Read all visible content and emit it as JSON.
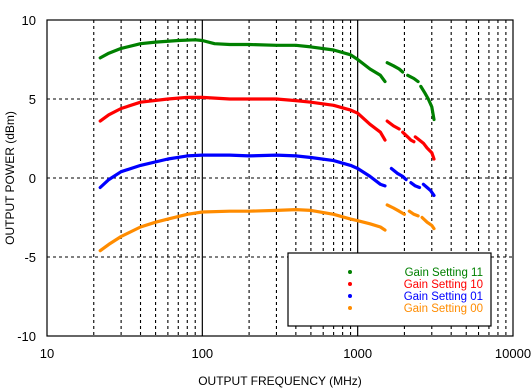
{
  "chart_data": {
    "type": "line",
    "title": "",
    "xlabel": "OUTPUT FREQUENCY (MHz)",
    "ylabel": "OUTPUT POWER (dBm)",
    "xscale": "log",
    "xlim": [
      10,
      10000
    ],
    "ylim": [
      -10,
      10
    ],
    "x_ticks": [
      10,
      100,
      1000,
      10000
    ],
    "x_tick_labels": [
      "10",
      "100",
      "1000",
      "10000"
    ],
    "y_ticks": [
      -10,
      -5,
      0,
      5,
      10
    ],
    "y_tick_labels": [
      "-10",
      "-5",
      "0",
      "5",
      "10"
    ],
    "grid": true,
    "legend_position": "bottom-right",
    "series": [
      {
        "name": "Gain Setting 11",
        "color": "#008000",
        "segments": [
          [
            [
              22,
              7.6
            ],
            [
              25,
              7.9
            ],
            [
              30,
              8.2
            ],
            [
              40,
              8.5
            ],
            [
              50,
              8.6
            ],
            [
              70,
              8.7
            ],
            [
              90,
              8.75
            ],
            [
              100,
              8.7
            ],
            [
              120,
              8.5
            ],
            [
              150,
              8.45
            ],
            [
              200,
              8.45
            ],
            [
              300,
              8.4
            ],
            [
              400,
              8.4
            ],
            [
              500,
              8.3
            ],
            [
              700,
              8.1
            ],
            [
              900,
              7.8
            ],
            [
              1000,
              7.5
            ],
            [
              1200,
              6.9
            ],
            [
              1400,
              6.5
            ],
            [
              1500,
              6.1
            ]
          ],
          [
            [
              1550,
              7.3
            ],
            [
              1700,
              7.1
            ],
            [
              1850,
              6.9
            ],
            [
              1950,
              6.7
            ]
          ],
          [
            [
              2100,
              6.5
            ],
            [
              2300,
              6.3
            ],
            [
              2450,
              6.1
            ]
          ],
          [
            [
              2550,
              5.8
            ],
            [
              2700,
              5.4
            ],
            [
              2850,
              5.0
            ],
            [
              3000,
              4.5
            ],
            [
              3100,
              3.7
            ]
          ]
        ]
      },
      {
        "name": "Gain Setting 10",
        "color": "#ff0000",
        "segments": [
          [
            [
              22,
              3.6
            ],
            [
              25,
              4.0
            ],
            [
              30,
              4.4
            ],
            [
              40,
              4.8
            ],
            [
              60,
              5.0
            ],
            [
              80,
              5.1
            ],
            [
              100,
              5.1
            ],
            [
              150,
              5.0
            ],
            [
              200,
              5.0
            ],
            [
              300,
              5.0
            ],
            [
              400,
              4.9
            ],
            [
              500,
              4.8
            ],
            [
              700,
              4.6
            ],
            [
              900,
              4.3
            ],
            [
              1000,
              4.1
            ],
            [
              1200,
              3.4
            ],
            [
              1400,
              2.9
            ],
            [
              1500,
              2.4
            ]
          ],
          [
            [
              1550,
              3.6
            ],
            [
              1700,
              3.3
            ],
            [
              1850,
              3.1
            ]
          ],
          [
            [
              1950,
              2.9
            ],
            [
              2100,
              2.6
            ],
            [
              2200,
              2.4
            ],
            [
              2300,
              2.3
            ]
          ],
          [
            [
              2350,
              2.6
            ],
            [
              2500,
              2.4
            ],
            [
              2650,
              2.2
            ],
            [
              2800,
              1.9
            ],
            [
              3000,
              1.6
            ],
            [
              3100,
              1.2
            ]
          ]
        ]
      },
      {
        "name": "Gain Setting 01",
        "color": "#0000ff",
        "segments": [
          [
            [
              22,
              -0.6
            ],
            [
              25,
              -0.1
            ],
            [
              30,
              0.4
            ],
            [
              40,
              0.8
            ],
            [
              60,
              1.2
            ],
            [
              80,
              1.4
            ],
            [
              100,
              1.45
            ],
            [
              150,
              1.45
            ],
            [
              200,
              1.4
            ],
            [
              300,
              1.45
            ],
            [
              400,
              1.4
            ],
            [
              500,
              1.3
            ],
            [
              700,
              1.1
            ],
            [
              900,
              0.8
            ],
            [
              1000,
              0.6
            ],
            [
              1200,
              0.1
            ],
            [
              1400,
              -0.4
            ],
            [
              1500,
              -0.5
            ]
          ],
          [
            [
              1650,
              0.6
            ],
            [
              1800,
              0.3
            ],
            [
              1950,
              0.1
            ],
            [
              2050,
              -0.1
            ]
          ],
          [
            [
              2200,
              -0.3
            ],
            [
              2350,
              -0.5
            ],
            [
              2500,
              -0.6
            ]
          ],
          [
            [
              2650,
              -0.4
            ],
            [
              2800,
              -0.6
            ],
            [
              2950,
              -0.8
            ],
            [
              3100,
              -1.1
            ]
          ]
        ]
      },
      {
        "name": "Gain Setting 00",
        "color": "#ff8c00",
        "segments": [
          [
            [
              22,
              -4.6
            ],
            [
              25,
              -4.2
            ],
            [
              30,
              -3.7
            ],
            [
              40,
              -3.1
            ],
            [
              50,
              -2.8
            ],
            [
              60,
              -2.6
            ],
            [
              80,
              -2.3
            ],
            [
              100,
              -2.15
            ],
            [
              150,
              -2.1
            ],
            [
              200,
              -2.1
            ],
            [
              300,
              -2.05
            ],
            [
              400,
              -2.0
            ],
            [
              500,
              -2.05
            ],
            [
              700,
              -2.3
            ],
            [
              900,
              -2.6
            ],
            [
              1000,
              -2.7
            ],
            [
              1200,
              -2.9
            ],
            [
              1400,
              -3.1
            ],
            [
              1500,
              -3.3
            ]
          ],
          [
            [
              1550,
              -1.7
            ],
            [
              1700,
              -1.9
            ],
            [
              1850,
              -2.1
            ],
            [
              2000,
              -2.3
            ]
          ],
          [
            [
              2150,
              -2.1
            ],
            [
              2300,
              -2.3
            ],
            [
              2450,
              -2.4
            ]
          ],
          [
            [
              2600,
              -2.5
            ],
            [
              2800,
              -2.8
            ],
            [
              3000,
              -3.0
            ],
            [
              3100,
              -3.2
            ]
          ]
        ]
      }
    ]
  }
}
